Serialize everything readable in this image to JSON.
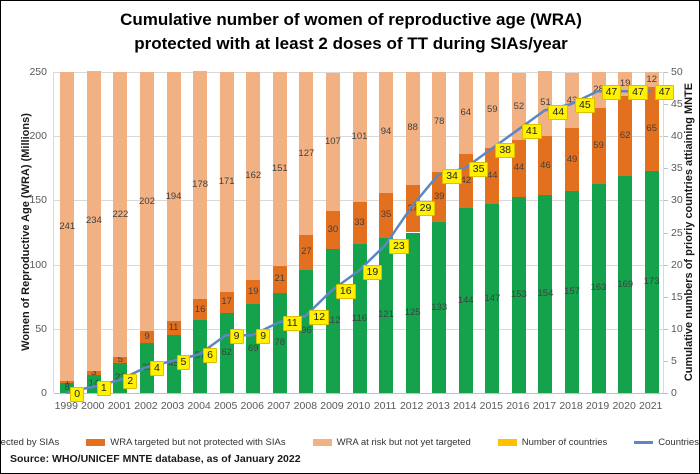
{
  "title": {
    "line1": "Cumulative number of women of reproductive age (WRA)",
    "line2": "protected with at least 2 doses of TT during SIAs/year"
  },
  "source": "Source: WHO/UNICEF MNTE database, as of January 2022",
  "chart_data": {
    "type": "bar",
    "stacked": true,
    "grid": true,
    "legend_position": "bottom",
    "categories": [
      1999,
      2000,
      2001,
      2002,
      2003,
      2004,
      2005,
      2006,
      2007,
      2008,
      2009,
      2010,
      2011,
      2012,
      2013,
      2014,
      2015,
      2016,
      2017,
      2018,
      2019,
      2020,
      2021
    ],
    "series": [
      {
        "name": "WRA Protected by SIAs",
        "color": "#14a24c",
        "values": [
          8,
          14,
          23,
          39,
          45,
          57,
          62,
          69,
          78,
          96,
          112,
          116,
          121,
          125,
          133,
          144,
          147,
          153,
          154,
          157,
          163,
          169,
          173
        ]
      },
      {
        "name": "WRA targeted but not protected with SIAs",
        "color": "#e3701e",
        "values": [
          1,
          3,
          5,
          9,
          11,
          16,
          17,
          19,
          21,
          27,
          30,
          33,
          35,
          37,
          39,
          42,
          44,
          44,
          46,
          49,
          59,
          62,
          65
        ]
      },
      {
        "name": "WRA at risk but not yet targeted",
        "color": "#f2b183",
        "values": [
          241,
          234,
          222,
          202,
          194,
          178,
          171,
          162,
          151,
          127,
          107,
          101,
          94,
          88,
          78,
          64,
          59,
          52,
          51,
          43,
          28,
          19,
          12
        ]
      }
    ],
    "line_series": {
      "name": "Countries attaining MNTE",
      "color": "#5b88c4",
      "axis": "right",
      "values": [
        0,
        1,
        2,
        4,
        5,
        6,
        9,
        9,
        11,
        12,
        16,
        19,
        23,
        29,
        34,
        35,
        38,
        41,
        44,
        45,
        47,
        47,
        47
      ]
    },
    "label_series": {
      "name": "Number of countries",
      "bg_color": "#fff100",
      "swatch_color": "#ffc000"
    },
    "ylabel_left": "Women of Reproductive Age (WRA) (Millions)",
    "ylabel_right": "Cumulative numbers of prioriy countries attiaining MNTE",
    "ylim_left": [
      0,
      250
    ],
    "ylim_right": [
      0,
      50
    ],
    "yticks_left": [
      0,
      50,
      100,
      150,
      200,
      250
    ],
    "yticks_right": [
      0,
      5,
      10,
      15,
      20,
      25,
      30,
      35,
      40,
      45,
      50
    ]
  }
}
